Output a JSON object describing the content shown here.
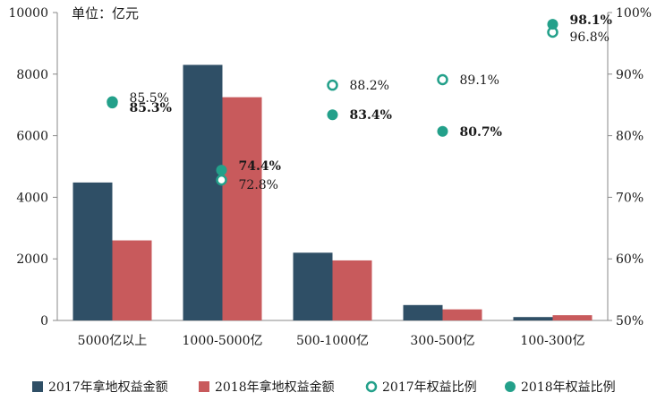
{
  "chart_data": {
    "type": "bar",
    "unit_label": "单位：亿元",
    "categories": [
      "5000亿以上",
      "1000-5000亿",
      "500-1000亿",
      "300-500亿",
      "100-300亿"
    ],
    "series": [
      {
        "name": "2017年拿地权益金额",
        "kind": "bar",
        "axis": "left",
        "color": "#2f4f66",
        "values": [
          4480,
          8300,
          2200,
          500,
          110
        ]
      },
      {
        "name": "2018年拿地权益金额",
        "kind": "bar",
        "axis": "left",
        "color": "#c85a5c",
        "values": [
          2600,
          7250,
          1950,
          360,
          170
        ]
      },
      {
        "name": "2017年权益比例",
        "kind": "marker-hollow",
        "axis": "right",
        "color": "#23a08a",
        "values": [
          85.5,
          72.8,
          88.2,
          89.1,
          96.8
        ],
        "labels": [
          "85.5%",
          "72.8%",
          "88.2%",
          "89.1%",
          "96.8%"
        ]
      },
      {
        "name": "2018年权益比例",
        "kind": "marker-filled",
        "axis": "right",
        "color": "#23a08a",
        "values": [
          85.3,
          74.4,
          83.4,
          80.7,
          98.1
        ],
        "labels": [
          "85.3%",
          "74.4%",
          "83.4%",
          "80.7%",
          "98.1%"
        ]
      }
    ],
    "y_left": {
      "lim": [
        0,
        10000
      ],
      "ticks": [
        0,
        2000,
        4000,
        6000,
        8000,
        10000
      ],
      "tick_labels": [
        "0",
        "2000",
        "4000",
        "6000",
        "8000",
        "10000"
      ]
    },
    "y_right": {
      "lim": [
        50,
        100
      ],
      "ticks": [
        50,
        60,
        70,
        80,
        90,
        100
      ],
      "tick_labels": [
        "50%",
        "60%",
        "70%",
        "80%",
        "90%",
        "100%"
      ]
    },
    "grid": false,
    "legend_position": "bottom"
  }
}
